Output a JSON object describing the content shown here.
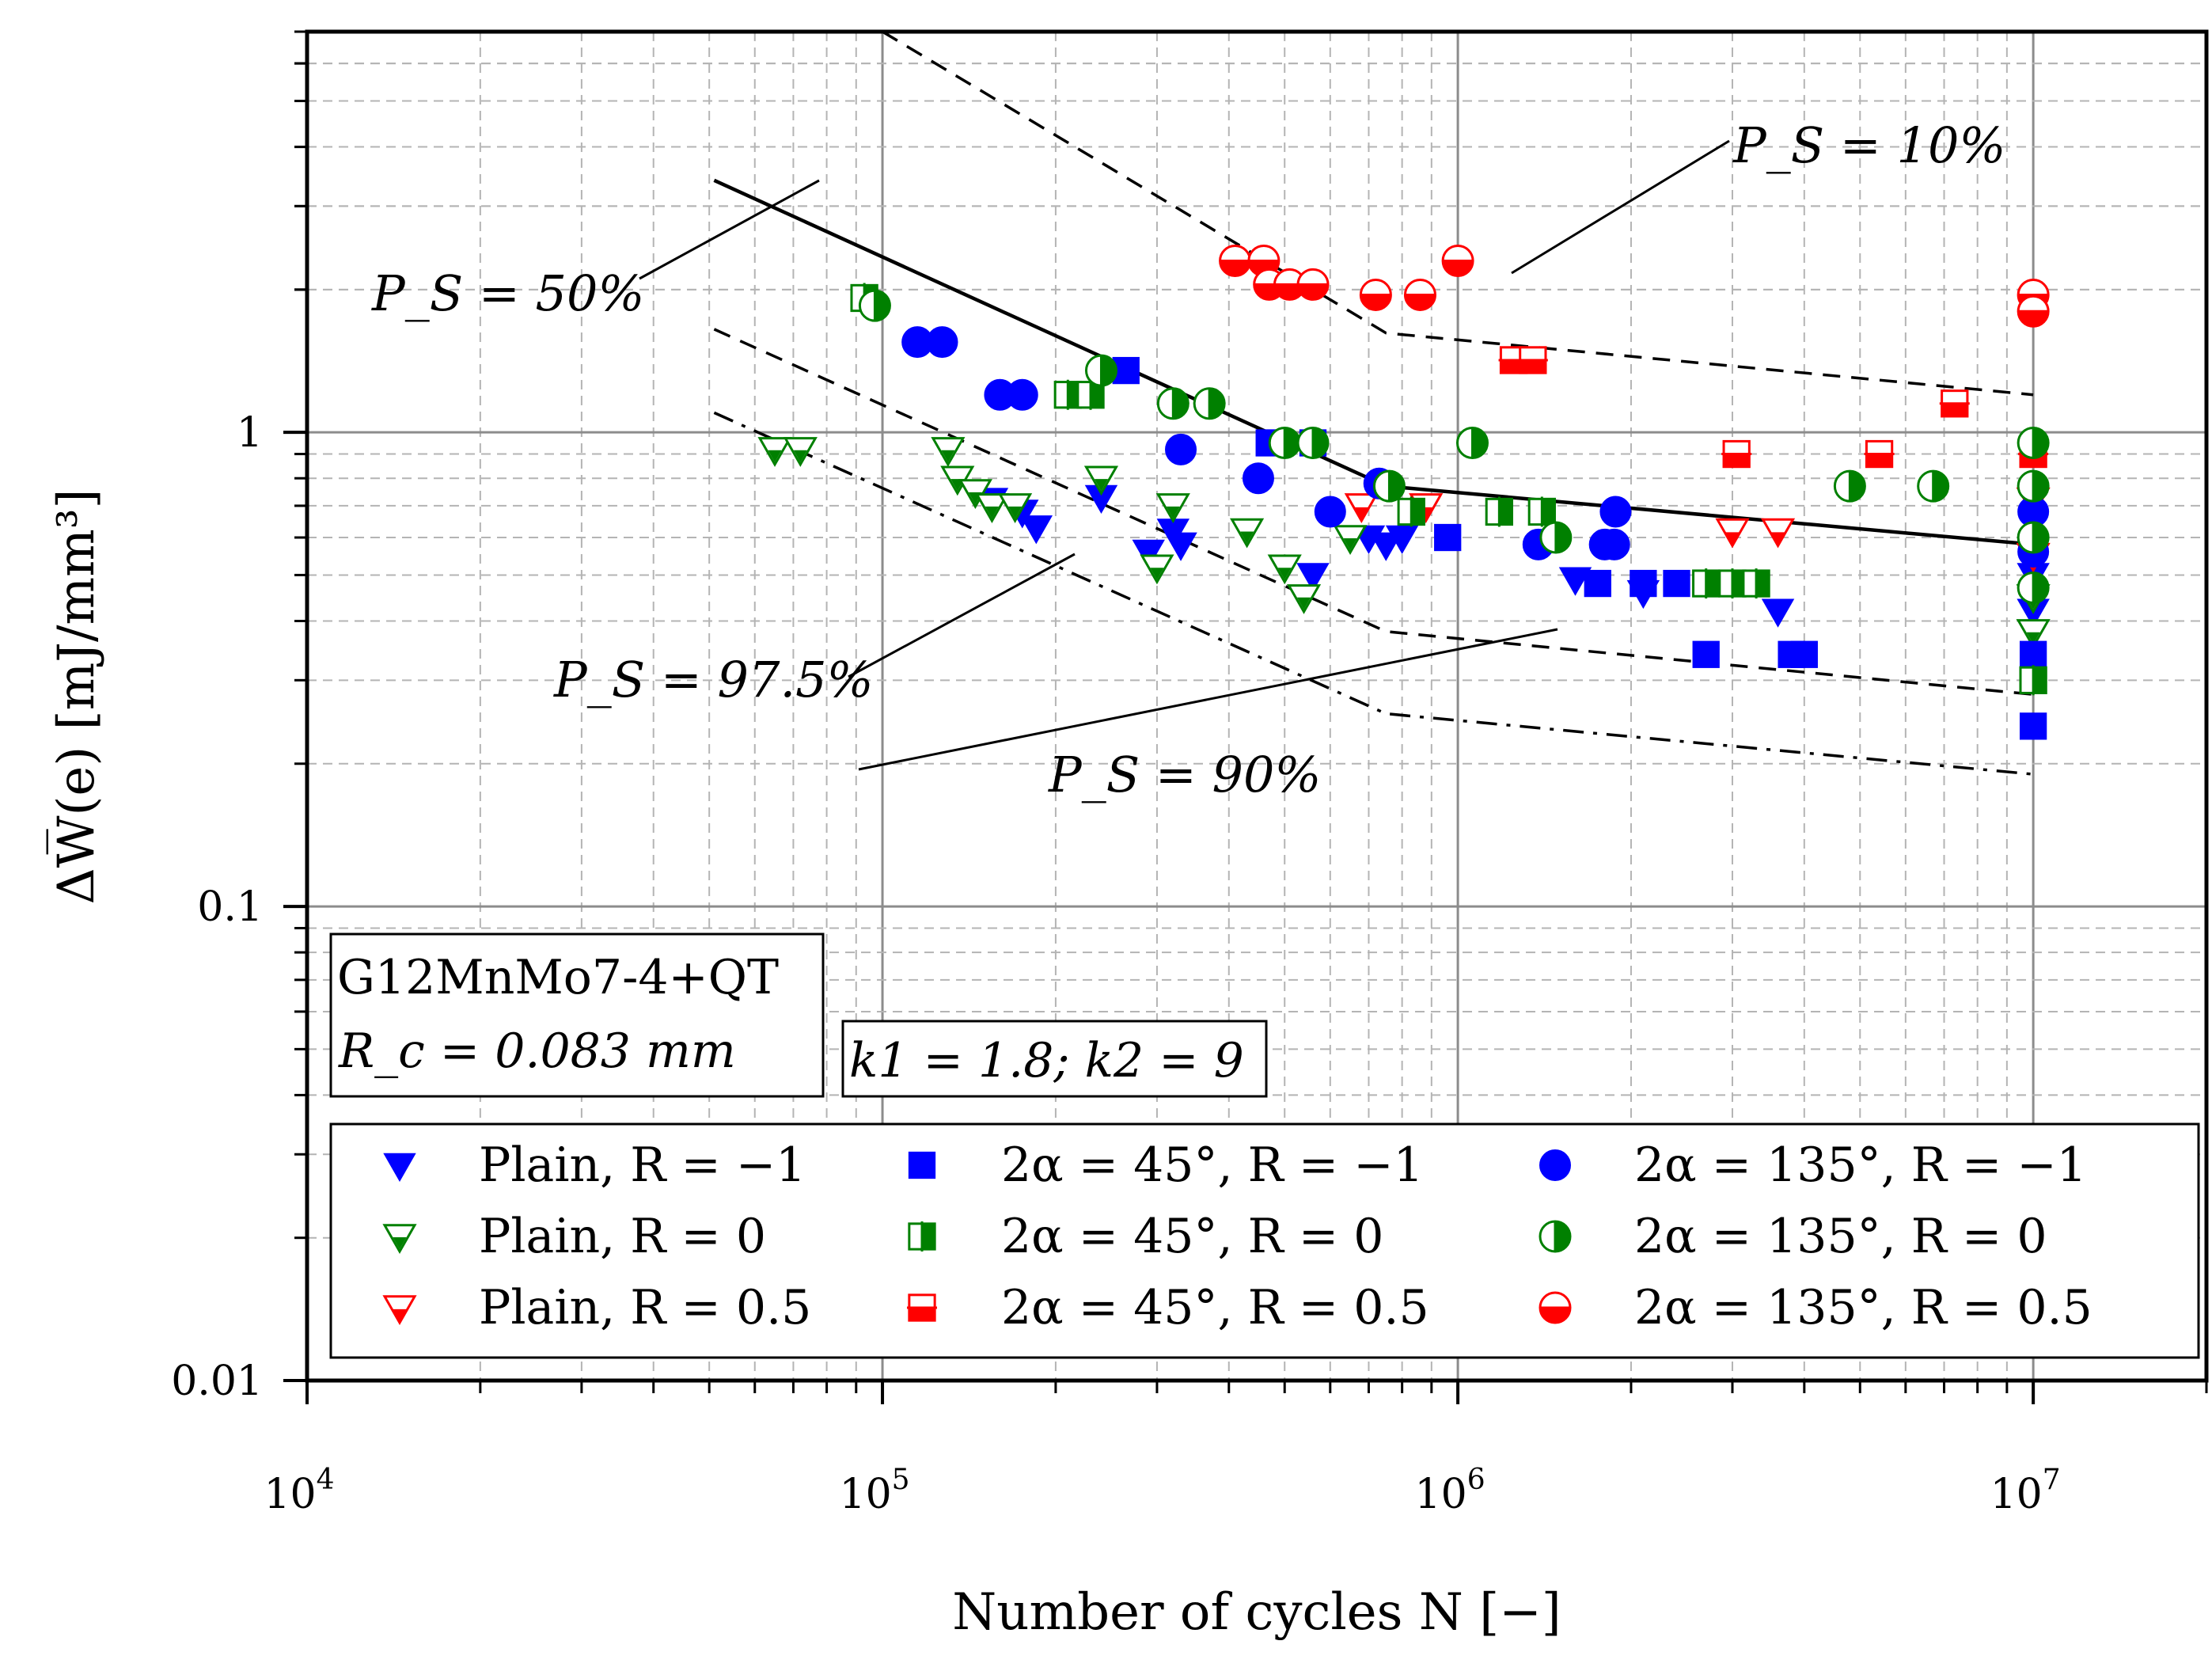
{
  "chart_data": {
    "type": "scatter",
    "title": "",
    "xlabel": "Number of cycles N [−]",
    "ylabel": "ΔW̅(e) [mJ/mm³]",
    "xscale": "log",
    "yscale": "log",
    "xlim": [
      10000,
      20000000
    ],
    "ylim": [
      0.01,
      7
    ],
    "x_ticks": [
      {
        "value": 10000,
        "base": "10",
        "exp": "4"
      },
      {
        "value": 100000,
        "base": "10",
        "exp": "5"
      },
      {
        "value": 1000000,
        "base": "10",
        "exp": "6"
      },
      {
        "value": 10000000,
        "base": "10",
        "exp": "7"
      }
    ],
    "y_ticks": [
      {
        "value": 0.01,
        "label": "0.01"
      },
      {
        "value": 0.1,
        "label": "0.1"
      },
      {
        "value": 1,
        "label": "1"
      }
    ],
    "grid": true,
    "material_box": {
      "line1": "G12MnMo7-4+QT",
      "line2": "R_c = 0.083 mm"
    },
    "slope_box": "k1 = 1.8;  k2 = 9",
    "curves": [
      {
        "name": "P_S = 10%",
        "style": "dashed",
        "points": [
          [
            100000,
            7.0
          ],
          [
            750000,
            1.62
          ],
          [
            10000000,
            1.2
          ]
        ]
      },
      {
        "name": "P_S = 50%",
        "style": "solid",
        "points": [
          [
            51000,
            3.4
          ],
          [
            750000,
            0.77
          ],
          [
            10000000,
            0.58
          ]
        ]
      },
      {
        "name": "P_S = 90%",
        "style": "dashed",
        "points": [
          [
            51000,
            1.65
          ],
          [
            750000,
            0.38
          ],
          [
            10000000,
            0.28
          ]
        ]
      },
      {
        "name": "P_S = 97.5%",
        "style": "dashdot",
        "points": [
          [
            51000,
            1.1
          ],
          [
            750000,
            0.255
          ],
          [
            10000000,
            0.19
          ]
        ]
      }
    ],
    "curve_labels": [
      {
        "curve": "P_S = 10%",
        "text": "P_S = 10%"
      },
      {
        "curve": "P_S = 50%",
        "text": "P_S = 50%"
      },
      {
        "curve": "P_S = 90%",
        "text": "P_S = 90%"
      },
      {
        "curve": "P_S = 97.5%",
        "text": "P_S = 97.5%"
      }
    ],
    "series": [
      {
        "name": "Plain,  R = −1",
        "marker": "triangle-down",
        "fill": "full",
        "color": "#0000ff",
        "points": [
          [
            155000,
            0.72
          ],
          [
            175000,
            0.68
          ],
          [
            185000,
            0.63
          ],
          [
            240000,
            0.73
          ],
          [
            290000,
            0.56
          ],
          [
            320000,
            0.62
          ],
          [
            330000,
            0.58
          ],
          [
            560000,
            0.5
          ],
          [
            700000,
            0.6
          ],
          [
            750000,
            0.58
          ],
          [
            800000,
            0.6
          ],
          [
            1600000,
            0.49
          ],
          [
            2100000,
            0.46
          ],
          [
            3600000,
            0.42
          ],
          [
            10000000,
            0.5
          ],
          [
            10000000,
            0.42
          ]
        ]
      },
      {
        "name": "Plain,  R = 0",
        "marker": "triangle-down",
        "fill": "open",
        "color": "#008000",
        "points": [
          [
            65000,
            0.92
          ],
          [
            72000,
            0.92
          ],
          [
            130000,
            0.92
          ],
          [
            135000,
            0.8
          ],
          [
            145000,
            0.75
          ],
          [
            155000,
            0.7
          ],
          [
            170000,
            0.7
          ],
          [
            240000,
            0.8
          ],
          [
            300000,
            0.52
          ],
          [
            320000,
            0.7
          ],
          [
            430000,
            0.62
          ],
          [
            500000,
            0.52
          ],
          [
            540000,
            0.45
          ],
          [
            650000,
            0.6
          ],
          [
            10000000,
            0.45
          ],
          [
            10000000,
            0.38
          ]
        ]
      },
      {
        "name": "Plain,  R = 0.5",
        "marker": "triangle-down",
        "fill": "open-red",
        "color": "#ff0000",
        "points": [
          [
            680000,
            0.7
          ],
          [
            880000,
            0.7
          ],
          [
            3000000,
            0.62
          ],
          [
            3600000,
            0.62
          ],
          [
            10000000,
            0.72
          ],
          [
            10000000,
            0.55
          ]
        ]
      },
      {
        "name": "2α = 45°,  R = −1",
        "marker": "square",
        "fill": "full",
        "color": "#0000ff",
        "points": [
          [
            265000,
            1.35
          ],
          [
            470000,
            0.95
          ],
          [
            560000,
            0.95
          ],
          [
            960000,
            0.6
          ],
          [
            1750000,
            0.48
          ],
          [
            2100000,
            0.48
          ],
          [
            2400000,
            0.48
          ],
          [
            2700000,
            0.34
          ],
          [
            3800000,
            0.34
          ],
          [
            4000000,
            0.34
          ],
          [
            10000000,
            0.34
          ],
          [
            10000000,
            0.24
          ]
        ]
      },
      {
        "name": "2α = 45°,  R = 0",
        "marker": "square",
        "fill": "right-half",
        "color": "#008000",
        "points": [
          [
            93000,
            1.92
          ],
          [
            210000,
            1.2
          ],
          [
            230000,
            1.2
          ],
          [
            830000,
            0.68
          ],
          [
            1180000,
            0.68
          ],
          [
            1400000,
            0.68
          ],
          [
            2700000,
            0.48
          ],
          [
            3000000,
            0.48
          ],
          [
            3300000,
            0.48
          ],
          [
            10000000,
            0.3
          ]
        ]
      },
      {
        "name": "2α = 45°,  R = 0.5",
        "marker": "square",
        "fill": "bottom-half",
        "color": "#ff0000",
        "points": [
          [
            1250000,
            1.42
          ],
          [
            1350000,
            1.42
          ],
          [
            3050000,
            0.9
          ],
          [
            5400000,
            0.9
          ],
          [
            7300000,
            1.15
          ],
          [
            10000000,
            0.9
          ]
        ]
      },
      {
        "name": "2α = 135°,  R = −1",
        "marker": "circle",
        "fill": "full",
        "color": "#0000ff",
        "points": [
          [
            115000,
            1.55
          ],
          [
            127000,
            1.55
          ],
          [
            160000,
            1.2
          ],
          [
            175000,
            1.2
          ],
          [
            330000,
            0.92
          ],
          [
            450000,
            0.8
          ],
          [
            600000,
            0.68
          ],
          [
            730000,
            0.78
          ],
          [
            1380000,
            0.58
          ],
          [
            1800000,
            0.58
          ],
          [
            1870000,
            0.58
          ],
          [
            1880000,
            0.68
          ],
          [
            10000000,
            0.68
          ],
          [
            10000000,
            0.56
          ]
        ]
      },
      {
        "name": "2α = 135°,  R = 0",
        "marker": "circle",
        "fill": "right-half",
        "color": "#008000",
        "points": [
          [
            97000,
            1.85
          ],
          [
            240000,
            1.35
          ],
          [
            320000,
            1.15
          ],
          [
            370000,
            1.15
          ],
          [
            500000,
            0.95
          ],
          [
            560000,
            0.95
          ],
          [
            760000,
            0.77
          ],
          [
            1060000,
            0.95
          ],
          [
            1480000,
            0.6
          ],
          [
            4800000,
            0.77
          ],
          [
            6700000,
            0.77
          ],
          [
            10000000,
            0.95
          ],
          [
            10000000,
            0.77
          ],
          [
            10000000,
            0.6
          ],
          [
            10000000,
            0.47
          ]
        ]
      },
      {
        "name": "2α = 135°,  R = 0.5",
        "marker": "circle",
        "fill": "bottom-half",
        "color": "#ff0000",
        "points": [
          [
            410000,
            2.3
          ],
          [
            460000,
            2.3
          ],
          [
            470000,
            2.05
          ],
          [
            510000,
            2.05
          ],
          [
            560000,
            2.05
          ],
          [
            720000,
            1.95
          ],
          [
            860000,
            1.95
          ],
          [
            1000000,
            2.3
          ],
          [
            10000000,
            1.95
          ],
          [
            10000000,
            1.8
          ]
        ]
      }
    ],
    "legend_position": "bottom-right"
  }
}
